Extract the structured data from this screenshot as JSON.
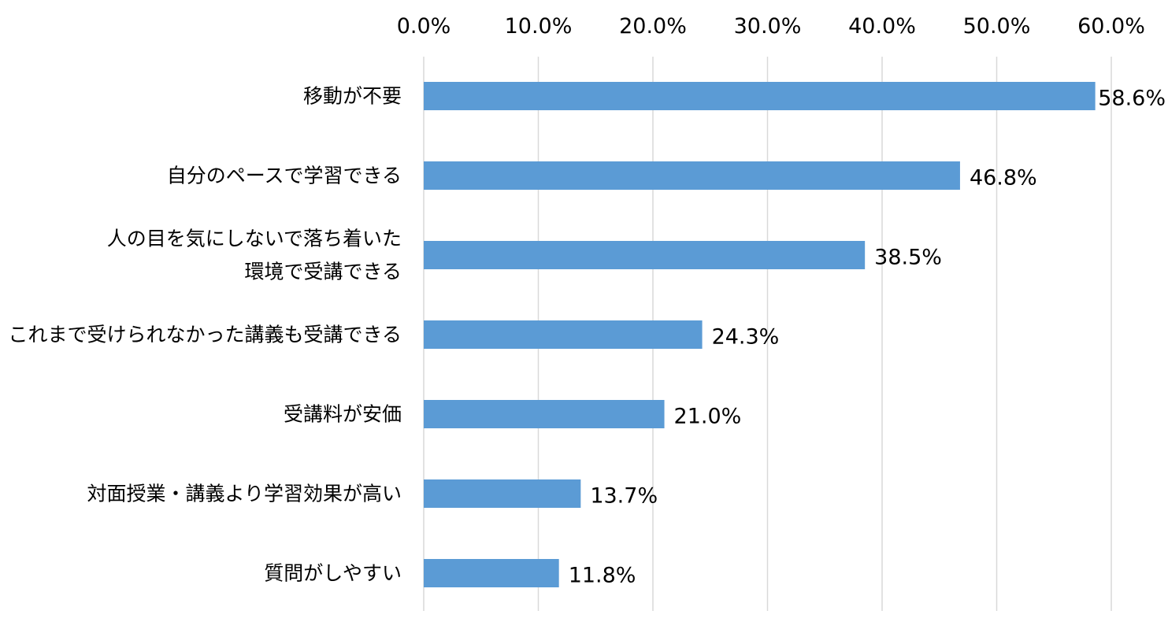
{
  "chart_data": {
    "type": "bar",
    "orientation": "horizontal",
    "categories": [
      [
        "移動が不要"
      ],
      [
        "自分のペースで学習できる"
      ],
      [
        "人の目を気にしないで落ち着いた",
        "環境で受講できる"
      ],
      [
        "これまで受けられなかった講義も受講できる"
      ],
      [
        "受講料が安価"
      ],
      [
        "対面授業・講義より学習効果が高い"
      ],
      [
        "質問がしやすい"
      ]
    ],
    "values": [
      58.6,
      46.8,
      38.5,
      24.3,
      21.0,
      13.7,
      11.8
    ],
    "data_labels": [
      "58.6%",
      "46.8%",
      "38.5%",
      "24.3%",
      "21.0%",
      "13.7%",
      "11.8%"
    ],
    "ticks": [
      0,
      10,
      20,
      30,
      40,
      50,
      60
    ],
    "tick_labels": [
      "0.0%",
      "10.0%",
      "20.0%",
      "30.0%",
      "40.0%",
      "50.0%",
      "60.0%"
    ],
    "xlim": [
      0,
      60
    ],
    "axis_position": "top",
    "grid": true,
    "legend": "none",
    "title": "",
    "xlabel": "",
    "ylabel": "",
    "colors": {
      "bar": "#5b9bd5",
      "grid": "#d9d9d9",
      "text": "#000000",
      "background": "#ffffff"
    }
  }
}
